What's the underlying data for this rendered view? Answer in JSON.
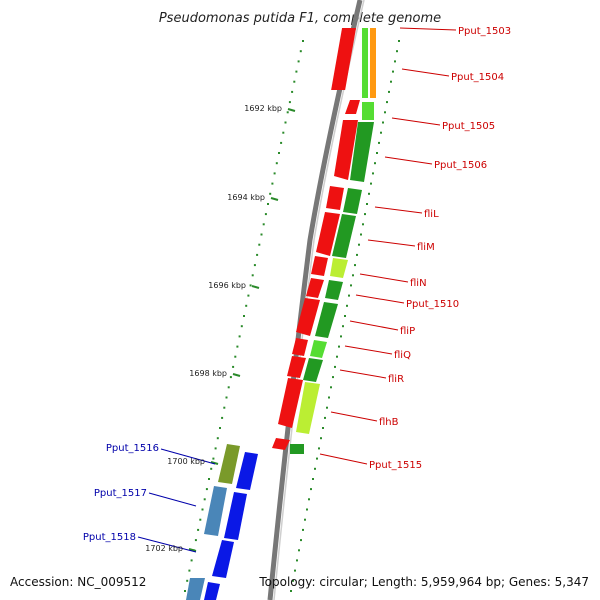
{
  "title": "Pseudomonas putida F1, complete genome",
  "footer": {
    "accession": "Accession: NC_009512",
    "topology": "Topology: circular; Length: 5,959,964 bp; Genes: 5,347"
  },
  "colors": {
    "red": "#ee1111",
    "dark_green": "#229922",
    "light_green": "#55dd33",
    "yellow_green": "#bbee33",
    "orange": "#ff9911",
    "blue": "#0a18e6",
    "steel_blue": "#4a86b8",
    "olive": "#7a9a2a",
    "forward_label": "#cc0000",
    "reverse_label": "#0000aa",
    "backbone": "#888888",
    "tick": "#2a8a2a"
  },
  "ticks": [
    {
      "label": "1692 kbp"
    },
    {
      "label": "1694 kbp"
    },
    {
      "label": "1696 kbp"
    },
    {
      "label": "1698 kbp"
    },
    {
      "label": "1700 kbp"
    },
    {
      "label": "1702 kbp"
    }
  ],
  "forward_labels": [
    {
      "text": "Pput_1503"
    },
    {
      "text": "Pput_1504"
    },
    {
      "text": "Pput_1505"
    },
    {
      "text": "Pput_1506"
    },
    {
      "text": "fliL"
    },
    {
      "text": "fliM"
    },
    {
      "text": "fliN"
    },
    {
      "text": "Pput_1510"
    },
    {
      "text": "fliP"
    },
    {
      "text": "fliQ"
    },
    {
      "text": "fliR"
    },
    {
      "text": "flhB"
    },
    {
      "text": "Pput_1515"
    }
  ],
  "reverse_labels": [
    {
      "text": "Pput_1516"
    },
    {
      "text": "Pput_1517"
    },
    {
      "text": "Pput_1518"
    }
  ]
}
